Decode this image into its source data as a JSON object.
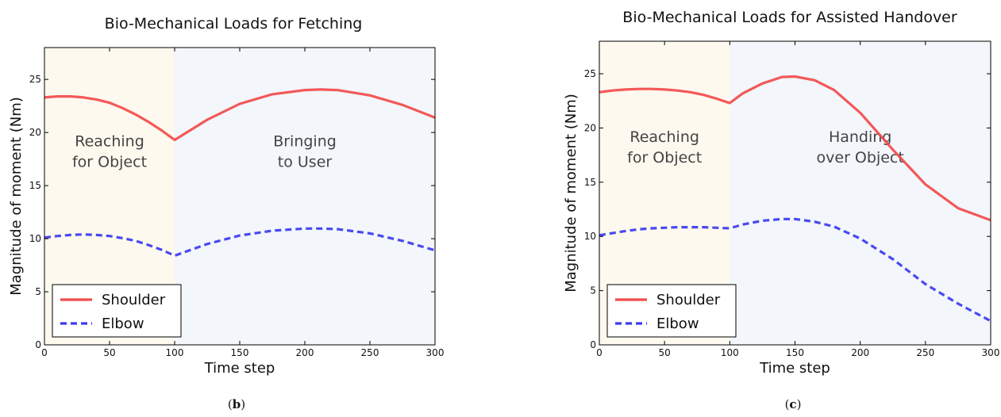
{
  "chart_data": [
    {
      "type": "line",
      "title": "Bio-Mechanical Loads for Fetching",
      "xlabel": "Time step",
      "ylabel": "Magnitude of moment (Nm)",
      "xlim": [
        0,
        300
      ],
      "ylim": [
        0,
        28
      ],
      "x_ticks": [
        0,
        50,
        100,
        150,
        200,
        250,
        300
      ],
      "y_ticks": [
        0,
        5,
        10,
        15,
        20,
        25
      ],
      "regions": [
        {
          "from": 0,
          "to": 100,
          "label_line1": "Reaching",
          "label_line2": "for Object",
          "color": "#fdf9ee"
        },
        {
          "from": 100,
          "to": 300,
          "label_line1": "Bringing",
          "label_line2": "to User",
          "color": "#f3f6fb"
        }
      ],
      "legend_position": "lower-left",
      "x": [
        0,
        10,
        20,
        30,
        40,
        50,
        60,
        70,
        80,
        90,
        100,
        125,
        150,
        175,
        200,
        212,
        225,
        250,
        275,
        300
      ],
      "series": [
        {
          "name": "Shoulder",
          "color": "#f24b4b",
          "style": "solid",
          "values": [
            23.3,
            23.4,
            23.4,
            23.3,
            23.1,
            22.8,
            22.3,
            21.7,
            21.0,
            20.2,
            19.3,
            21.2,
            22.7,
            23.6,
            24.0,
            24.05,
            24.0,
            23.5,
            22.6,
            21.4
          ]
        },
        {
          "name": "Elbow",
          "color": "#3a3af0",
          "style": "dashed",
          "values": [
            10.1,
            10.25,
            10.35,
            10.4,
            10.35,
            10.25,
            10.05,
            9.8,
            9.4,
            8.95,
            8.4,
            9.5,
            10.3,
            10.75,
            10.95,
            10.95,
            10.9,
            10.5,
            9.8,
            8.9
          ]
        }
      ],
      "caption_text": "b"
    },
    {
      "type": "line",
      "title": "Bio-Mechanical Loads for Assisted Handover",
      "xlabel": "Time step",
      "ylabel": "Magnitude of moment (Nm)",
      "xlim": [
        0,
        300
      ],
      "ylim": [
        0,
        28
      ],
      "x_ticks": [
        0,
        50,
        100,
        150,
        200,
        250,
        300
      ],
      "y_ticks": [
        0,
        5,
        10,
        15,
        20,
        25
      ],
      "regions": [
        {
          "from": 0,
          "to": 100,
          "label_line1": "Reaching",
          "label_line2": "for Object",
          "color": "#fdf9ee"
        },
        {
          "from": 100,
          "to": 300,
          "label_line1": "Handing",
          "label_line2": "over Object",
          "color": "#f3f6fb"
        }
      ],
      "legend_position": "lower-left",
      "x": [
        0,
        10,
        20,
        30,
        40,
        50,
        60,
        70,
        80,
        90,
        100,
        110,
        125,
        140,
        150,
        165,
        180,
        200,
        225,
        250,
        275,
        300
      ],
      "series": [
        {
          "name": "Shoulder",
          "color": "#f24b4b",
          "style": "solid",
          "values": [
            23.3,
            23.45,
            23.55,
            23.6,
            23.6,
            23.55,
            23.45,
            23.3,
            23.05,
            22.7,
            22.3,
            23.2,
            24.1,
            24.7,
            24.75,
            24.4,
            23.5,
            21.4,
            18.0,
            14.8,
            12.6,
            11.5
          ]
        },
        {
          "name": "Elbow",
          "color": "#3a3af0",
          "style": "dashed",
          "values": [
            10.1,
            10.3,
            10.5,
            10.65,
            10.75,
            10.8,
            10.85,
            10.85,
            10.85,
            10.8,
            10.75,
            11.1,
            11.45,
            11.6,
            11.6,
            11.35,
            10.9,
            9.8,
            7.9,
            5.6,
            3.8,
            2.2
          ]
        }
      ],
      "caption_text": "c"
    }
  ]
}
